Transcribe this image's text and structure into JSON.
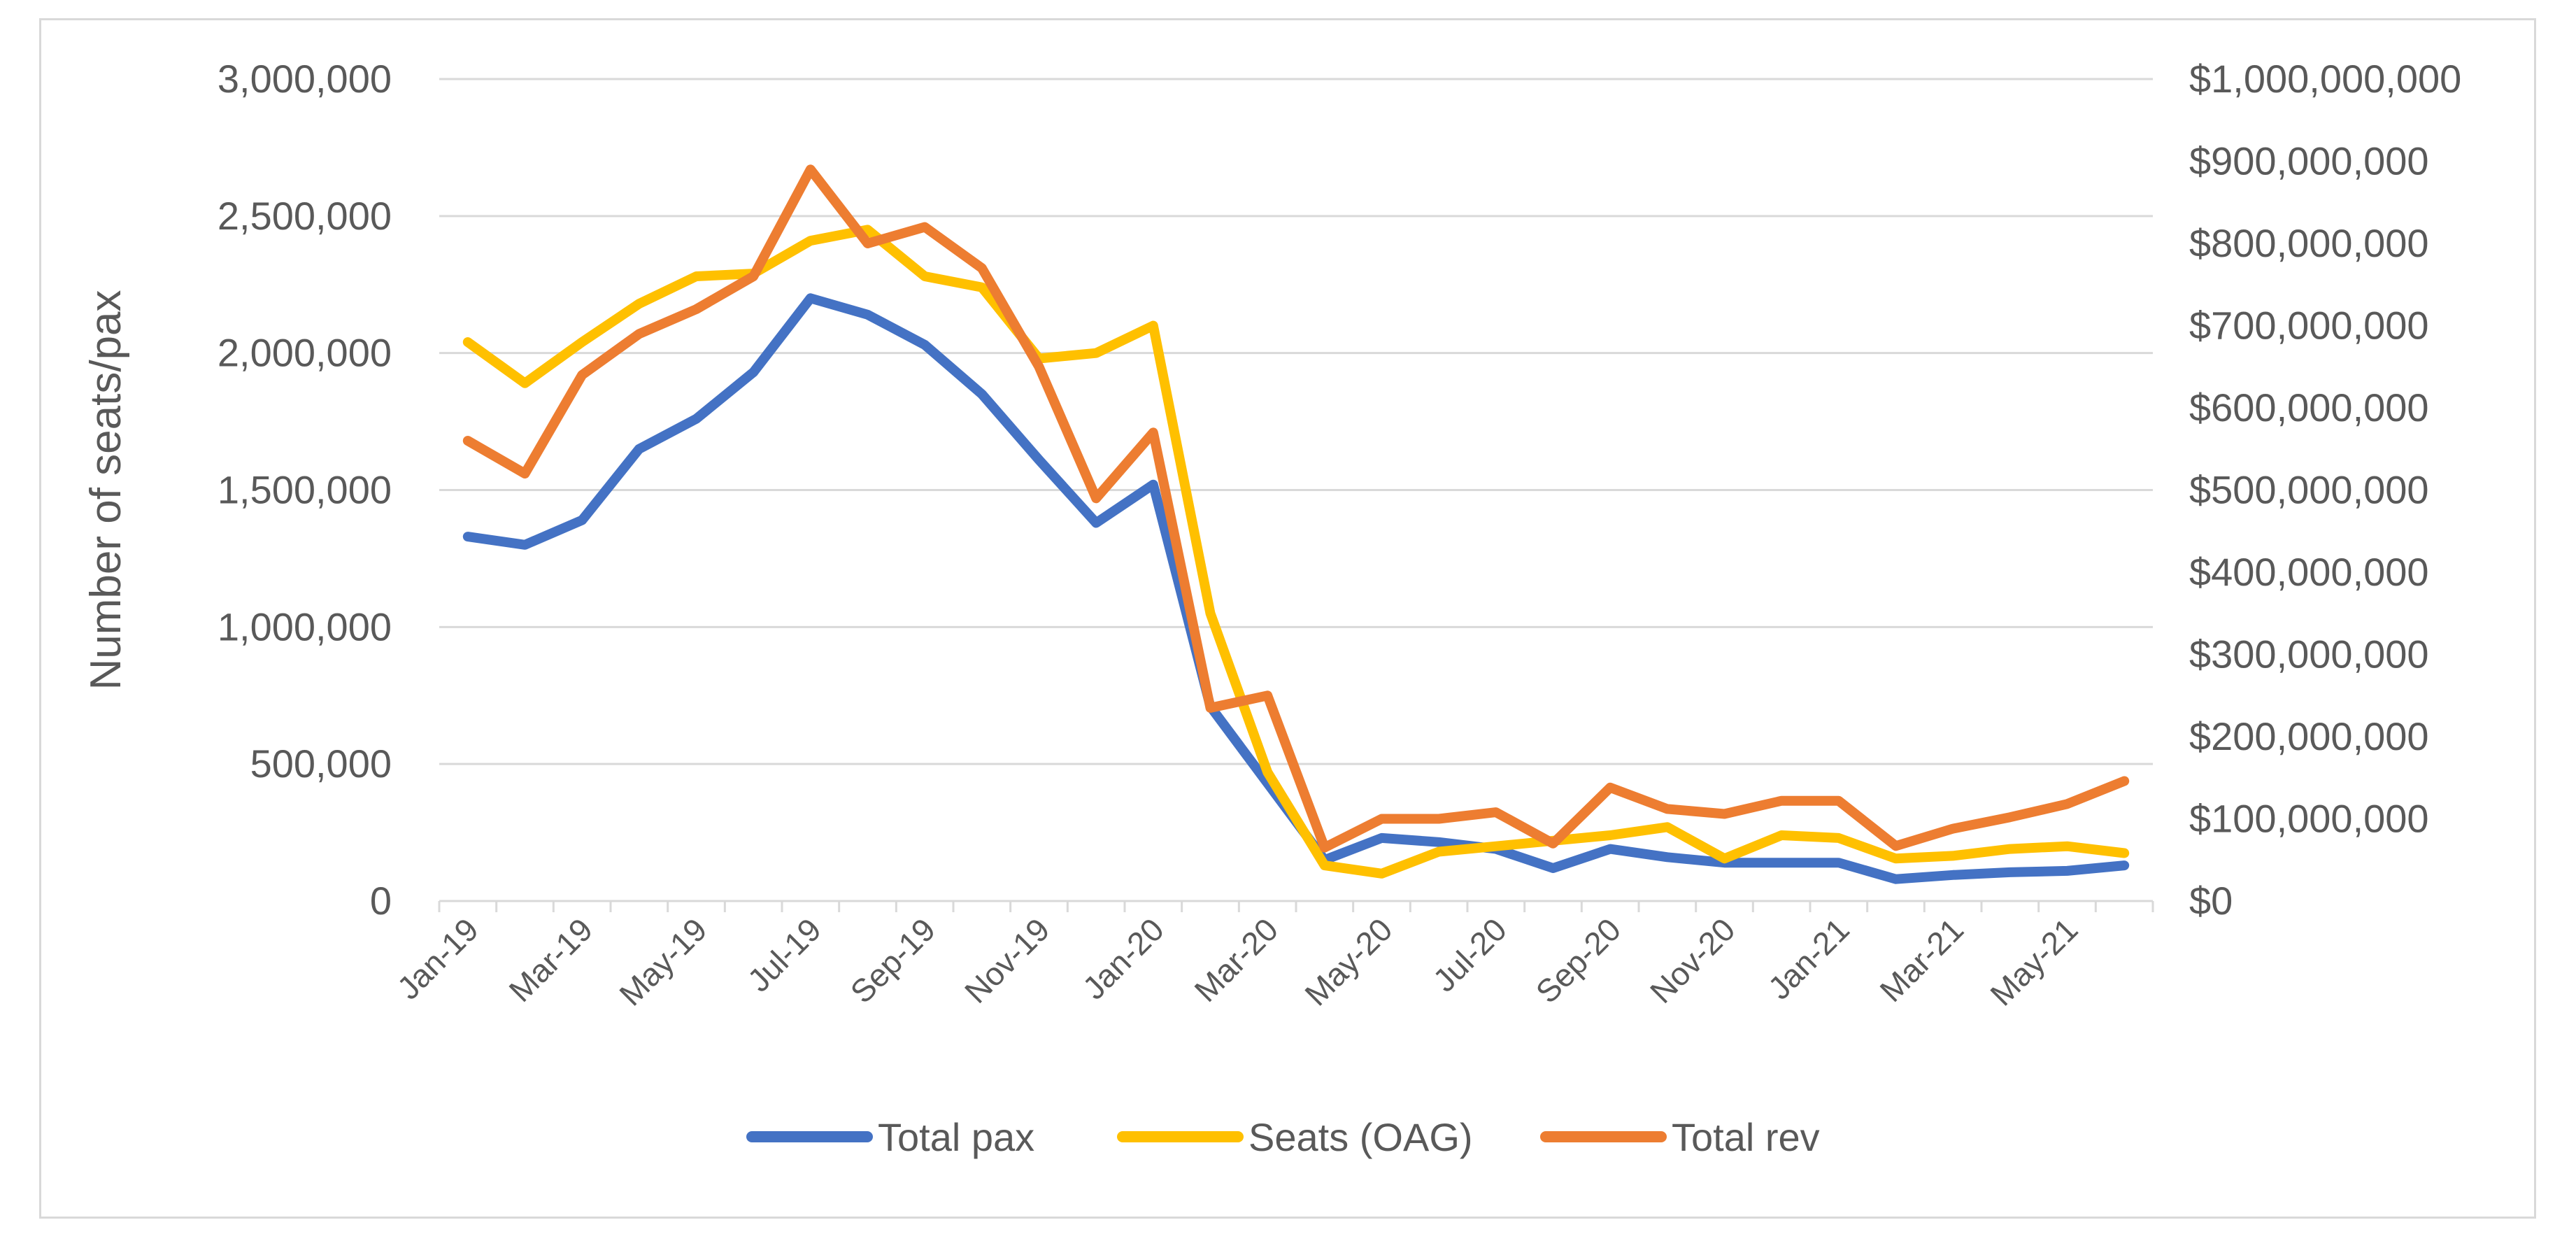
{
  "chart_data": {
    "type": "line",
    "title": "",
    "ylabel": "Number of seats/pax",
    "y2label": "",
    "ylim": [
      0,
      3000000
    ],
    "y2lim": [
      0,
      1000000000
    ],
    "y_ticks": [
      "0",
      "500,000",
      "1,000,000",
      "1,500,000",
      "2,000,000",
      "2,500,000",
      "3,000,000"
    ],
    "y2_ticks": [
      "$0",
      "$100,000,000",
      "$200,000,000",
      "$300,000,000",
      "$400,000,000",
      "$500,000,000",
      "$600,000,000",
      "$700,000,000",
      "$800,000,000",
      "$900,000,000",
      "$1,000,000,000"
    ],
    "x_tick_labels": [
      "Jan-19",
      "Mar-19",
      "May-19",
      "Jul-19",
      "Sep-19",
      "Nov-19",
      "Jan-20",
      "Mar-20",
      "May-20",
      "Jul-20",
      "Sep-20",
      "Nov-20",
      "Jan-21",
      "Mar-21",
      "May-21"
    ],
    "categories": [
      "Jan-19",
      "Feb-19",
      "Mar-19",
      "Apr-19",
      "May-19",
      "Jun-19",
      "Jul-19",
      "Aug-19",
      "Sep-19",
      "Oct-19",
      "Nov-19",
      "Dec-19",
      "Jan-20",
      "Feb-20",
      "Mar-20",
      "Apr-20",
      "May-20",
      "Jun-20",
      "Jul-20",
      "Aug-20",
      "Sep-20",
      "Oct-20",
      "Nov-20",
      "Dec-20",
      "Jan-21",
      "Feb-21",
      "Mar-21",
      "Apr-21",
      "May-21",
      "Jun-21"
    ],
    "series": [
      {
        "name": "Total pax",
        "axis": "left",
        "color": "#4472c4",
        "values": [
          1330000,
          1300000,
          1390000,
          1650000,
          1760000,
          1930000,
          2200000,
          2140000,
          2030000,
          1850000,
          1610000,
          1380000,
          1520000,
          710000,
          430000,
          150000,
          230000,
          215000,
          190000,
          120000,
          190000,
          160000,
          140000,
          140000,
          140000,
          80000,
          95000,
          105000,
          110000,
          130000
        ]
      },
      {
        "name": "Seats (OAG)",
        "axis": "left",
        "color": "#ffc000",
        "values": [
          2040000,
          1890000,
          2040000,
          2180000,
          2280000,
          2290000,
          2410000,
          2450000,
          2280000,
          2240000,
          1980000,
          2000000,
          2100000,
          1050000,
          470000,
          130000,
          100000,
          180000,
          200000,
          220000,
          240000,
          270000,
          155000,
          240000,
          230000,
          155000,
          165000,
          190000,
          200000,
          175000
        ]
      },
      {
        "name": "Total rev",
        "axis": "right",
        "color": "#ed7d31",
        "values": [
          560000000,
          520000000,
          640000000,
          690000000,
          720000000,
          760000000,
          890000000,
          800000000,
          820000000,
          770000000,
          650000000,
          490000000,
          570000000,
          235000000,
          250000000,
          65000000,
          100000000,
          100000000,
          108000000,
          70000000,
          138000000,
          112000000,
          106000000,
          122000000,
          122000000,
          67000000,
          88000000,
          102000000,
          118000000,
          146000000
        ]
      }
    ],
    "legend_position": "bottom",
    "grid": true
  }
}
